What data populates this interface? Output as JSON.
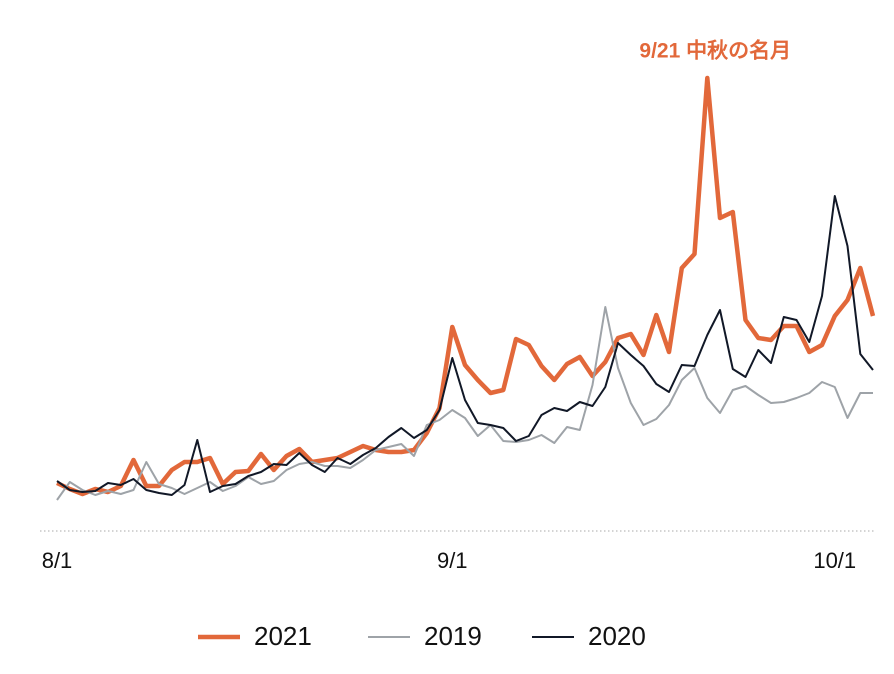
{
  "chart_data": {
    "type": "line",
    "annotation": "9/21 中秋の名月",
    "annotation_index": 51,
    "categories": [
      "8/1",
      null,
      null,
      null,
      null,
      null,
      null,
      null,
      null,
      null,
      null,
      null,
      null,
      null,
      null,
      null,
      null,
      null,
      null,
      null,
      null,
      null,
      null,
      null,
      null,
      null,
      null,
      null,
      null,
      null,
      null,
      "9/1",
      null,
      null,
      null,
      null,
      null,
      null,
      null,
      null,
      null,
      null,
      null,
      null,
      null,
      null,
      null,
      null,
      null,
      null,
      null,
      null,
      null,
      null,
      null,
      null,
      null,
      null,
      null,
      null,
      null,
      "10/1",
      null,
      null,
      null
    ],
    "ylim": [
      0,
      460
    ],
    "series": [
      {
        "name": "2021",
        "color": "#e2683a",
        "width": 4.5,
        "values": [
          47,
          41,
          36,
          41,
          38,
          44,
          70,
          44,
          44,
          60,
          68,
          68,
          72,
          46,
          58,
          59,
          76,
          60,
          74,
          81,
          68,
          70,
          72,
          78,
          84,
          80,
          78,
          78,
          80,
          97,
          122,
          203,
          165,
          150,
          137,
          140,
          191,
          185,
          164,
          150,
          166,
          173,
          154,
          168,
          192,
          196,
          175,
          215,
          178,
          262,
          276,
          452,
          312,
          318,
          210,
          192,
          190,
          204,
          204,
          178,
          185,
          214,
          230,
          262,
          214
        ]
      },
      {
        "name": "2019",
        "color": "#9ea3a8",
        "width": 2,
        "values": [
          30,
          48,
          40,
          35,
          39,
          36,
          40,
          68,
          46,
          42,
          36,
          42,
          48,
          39,
          44,
          53,
          46,
          49,
          60,
          66,
          68,
          64,
          64,
          62,
          70,
          80,
          83,
          86,
          74,
          105,
          110,
          120,
          112,
          94,
          105,
          89,
          88,
          90,
          95,
          87,
          103,
          100,
          145,
          223,
          162,
          127,
          105,
          111,
          125,
          150,
          162,
          132,
          117,
          140,
          144,
          135,
          127,
          128,
          132,
          137,
          148,
          143,
          112,
          137,
          137
        ]
      },
      {
        "name": "2020",
        "color": "#111827",
        "width": 2,
        "values": [
          49,
          40,
          38,
          39,
          47,
          45,
          51,
          40,
          37,
          35,
          45,
          90,
          38,
          44,
          46,
          54,
          58,
          66,
          65,
          77,
          65,
          58,
          72,
          66,
          75,
          82,
          93,
          102,
          92,
          100,
          120,
          172,
          130,
          107,
          105,
          102,
          89,
          94,
          115,
          122,
          119,
          128,
          124,
          143,
          187,
          175,
          164,
          146,
          138,
          165,
          164,
          195,
          220,
          161,
          153,
          180,
          167,
          213,
          210,
          188,
          234,
          334,
          284,
          176,
          160
        ]
      }
    ]
  }
}
